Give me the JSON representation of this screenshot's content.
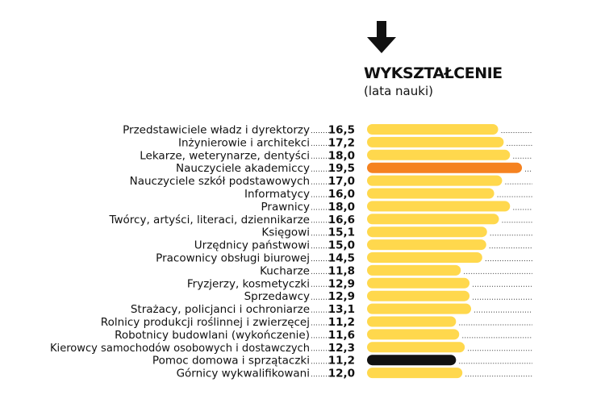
{
  "header": {
    "title": "WYKSZTAŁCENIE",
    "subtitle": "(lata nauki)",
    "icon": "arrow-down-icon"
  },
  "colors": {
    "default_bar": "#FFD84D",
    "highlight_bar": "#F58220",
    "dark_bar": "#111111",
    "leader": "#333333"
  },
  "chart_data": {
    "type": "bar",
    "orientation": "horizontal",
    "title": "WYKSZTAŁCENIE",
    "subtitle": "(lata nauki)",
    "xlim": [
      0,
      20
    ],
    "grid": false,
    "categories": [
      "Przedstawiciele władz i dyrektorzy",
      "Inżynierowie i architekci",
      "Lekarze, weterynarze, dentyści",
      "Nauczyciele akademiccy",
      "Nauczyciele szkół podstawowych",
      "Informatycy",
      "Prawnicy",
      "Twórcy, artyści, literaci, dziennikarze",
      "Księgowi",
      "Urzędnicy państwowi",
      "Pracownicy obsługi biurowej",
      "Kucharze",
      "Fryzjerzy, kosmetyczki",
      "Sprzedawcy",
      "Strażacy, policjanci i ochroniarze",
      "Rolnicy produkcji roślinnej i zwierzęcej",
      "Robotnicy budowlani (wykończenie)",
      "Kierowcy samochodów osobowych i dostawczych",
      "Pomoc domowa i sprzątaczki",
      "Górnicy wykwalifikowani"
    ],
    "values": [
      16.5,
      17.2,
      18.0,
      19.5,
      17.0,
      16.0,
      18.0,
      16.6,
      15.1,
      15.0,
      14.5,
      11.8,
      12.9,
      12.9,
      13.1,
      11.2,
      11.6,
      12.3,
      11.2,
      12.0
    ],
    "value_labels": [
      "16,5",
      "17,2",
      "18,0",
      "19,5",
      "17,0",
      "16,0",
      "18,0",
      "16,6",
      "15,1",
      "15,0",
      "14,5",
      "11,8",
      "12,9",
      "12,9",
      "13,1",
      "11,2",
      "11,6",
      "12,3",
      "11,2",
      "12,0"
    ],
    "highlight": {
      "Nauczyciele akademiccy": "orange",
      "Pomoc domowa i sprzątaczki": "black"
    }
  }
}
